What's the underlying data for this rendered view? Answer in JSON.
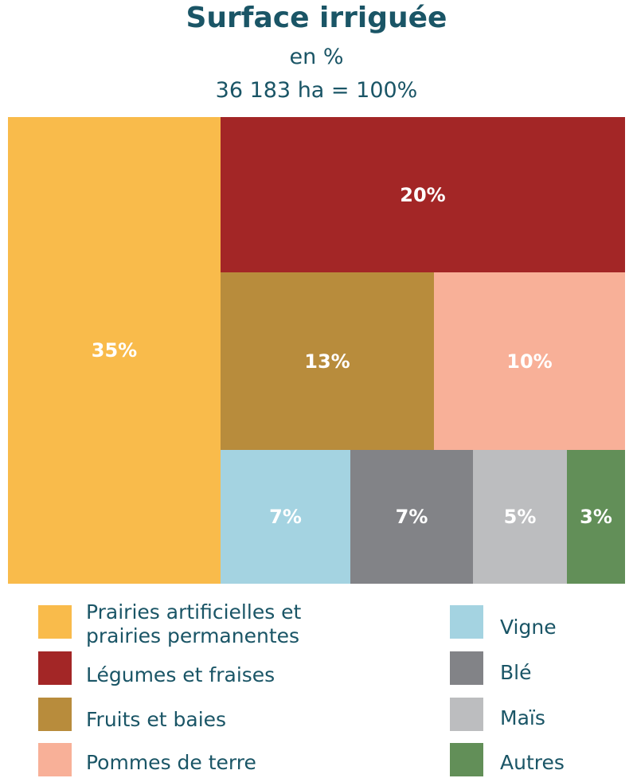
{
  "chart_data": {
    "type": "treemap",
    "title": "Surface irriguée",
    "subtitle": "en %",
    "total_label": "36 183 ha = 100%",
    "items": [
      {
        "key": "prairies",
        "name_line1": "Prairies artificielles et",
        "name_line2": "prairies permanentes",
        "value": 35,
        "label": "35%",
        "color": "#f9bb4b"
      },
      {
        "key": "legumes",
        "name": "Légumes et fraises",
        "value": 20,
        "label": "20%",
        "color": "#a32626"
      },
      {
        "key": "fruits",
        "name": "Fruits et baies",
        "value": 13,
        "label": "13%",
        "color": "#b88c3c"
      },
      {
        "key": "pommes",
        "name": "Pommes de terre",
        "value": 10,
        "label": "10%",
        "color": "#f8b098"
      },
      {
        "key": "vigne",
        "name": "Vigne",
        "value": 7,
        "label": "7%",
        "color": "#a4d3e1"
      },
      {
        "key": "ble",
        "name": "Blé",
        "value": 7,
        "label": "7%",
        "color": "#828387"
      },
      {
        "key": "mais",
        "name": "Maïs",
        "value": 5,
        "label": "5%",
        "color": "#bcbdbf"
      },
      {
        "key": "autres",
        "name": "Autres",
        "value": 3,
        "label": "3%",
        "color": "#628f58"
      }
    ]
  }
}
